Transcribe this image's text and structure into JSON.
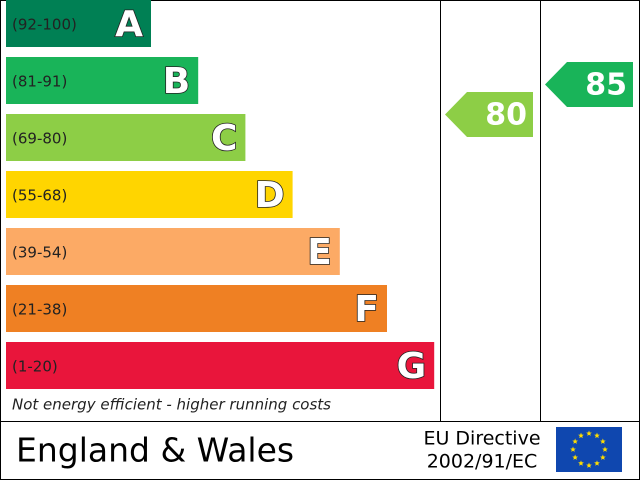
{
  "bands": [
    {
      "range": "(92-100)",
      "letter": "A",
      "color": "#008054"
    },
    {
      "range": "(81-91)",
      "letter": "B",
      "color": "#19b459"
    },
    {
      "range": "(69-80)",
      "letter": "C",
      "color": "#8dce46"
    },
    {
      "range": "(55-68)",
      "letter": "D",
      "color": "#ffd500"
    },
    {
      "range": "(39-54)",
      "letter": "E",
      "color": "#fcaa65"
    },
    {
      "range": "(21-38)",
      "letter": "F",
      "color": "#ef8023"
    },
    {
      "range": "(1-20)",
      "letter": "G",
      "color": "#e9153b"
    }
  ],
  "current": {
    "value": 80,
    "color": "#8dce46"
  },
  "potential": {
    "value": 85,
    "color": "#19b459"
  },
  "footnote": "Not energy efficient - higher running costs",
  "footer": {
    "region": "England & Wales",
    "directive": [
      "EU Directive",
      "2002/91/EC"
    ]
  }
}
